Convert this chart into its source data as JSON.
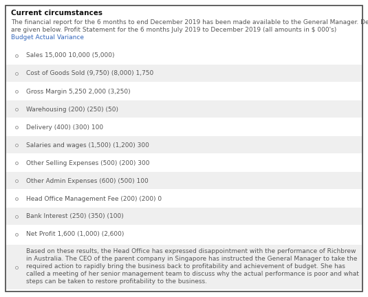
{
  "title": "Current circumstances",
  "intro_line1": "The financial report for the 6 months to end December 2019 has been made available to the General Manager. Details",
  "intro_line2": "are given below. Profit Statement for the 6 months July 2019 to December 2019 (all amounts in $ 000's)",
  "intro_line3": "Budget Actual Variance",
  "rows": [
    {
      "text": "Sales 15,000 10,000 (5,000)",
      "shaded": false
    },
    {
      "text": "Cost of Goods Sold (9,750) (8,000) 1,750",
      "shaded": true
    },
    {
      "text": "Gross Margin 5,250 2,000 (3,250)",
      "shaded": false
    },
    {
      "text": "Warehousing (200) (250) (50)",
      "shaded": true
    },
    {
      "text": "Delivery (400) (300) 100",
      "shaded": false
    },
    {
      "text": "Salaries and wages (1,500) (1,200) 300",
      "shaded": true
    },
    {
      "text": "Other Selling Expenses (500) (200) 300",
      "shaded": false
    },
    {
      "text": "Other Admin Expenses (600) (500) 100",
      "shaded": true
    },
    {
      "text": "Head Office Management Fee (200) (200) 0",
      "shaded": false
    },
    {
      "text": "Bank Interest (250) (350) (100)",
      "shaded": true
    },
    {
      "text": "Net Profit 1,600 (1,000) (2,600)",
      "shaded": false
    }
  ],
  "footer_lines": [
    "Based on these results, the Head Office has expressed disappointment with the performance of Richbrew",
    "in Australia. The CEO of the parent company in Singapore has instructed the General Manager to take the",
    "required action to rapidly bring the business back to profitability and achievement of budget. She has",
    "called a meeting of her senior management team to discuss why the actual performance is poor and what",
    "steps can be taken to restore profitability to the business."
  ],
  "bg_color": "#ffffff",
  "border_color": "#444444",
  "shaded_color": "#efefef",
  "title_color": "#111111",
  "text_color": "#555555",
  "link_color": "#3366bb",
  "bullet_color": "#999999",
  "font_size": 6.5,
  "title_font_size": 7.5
}
